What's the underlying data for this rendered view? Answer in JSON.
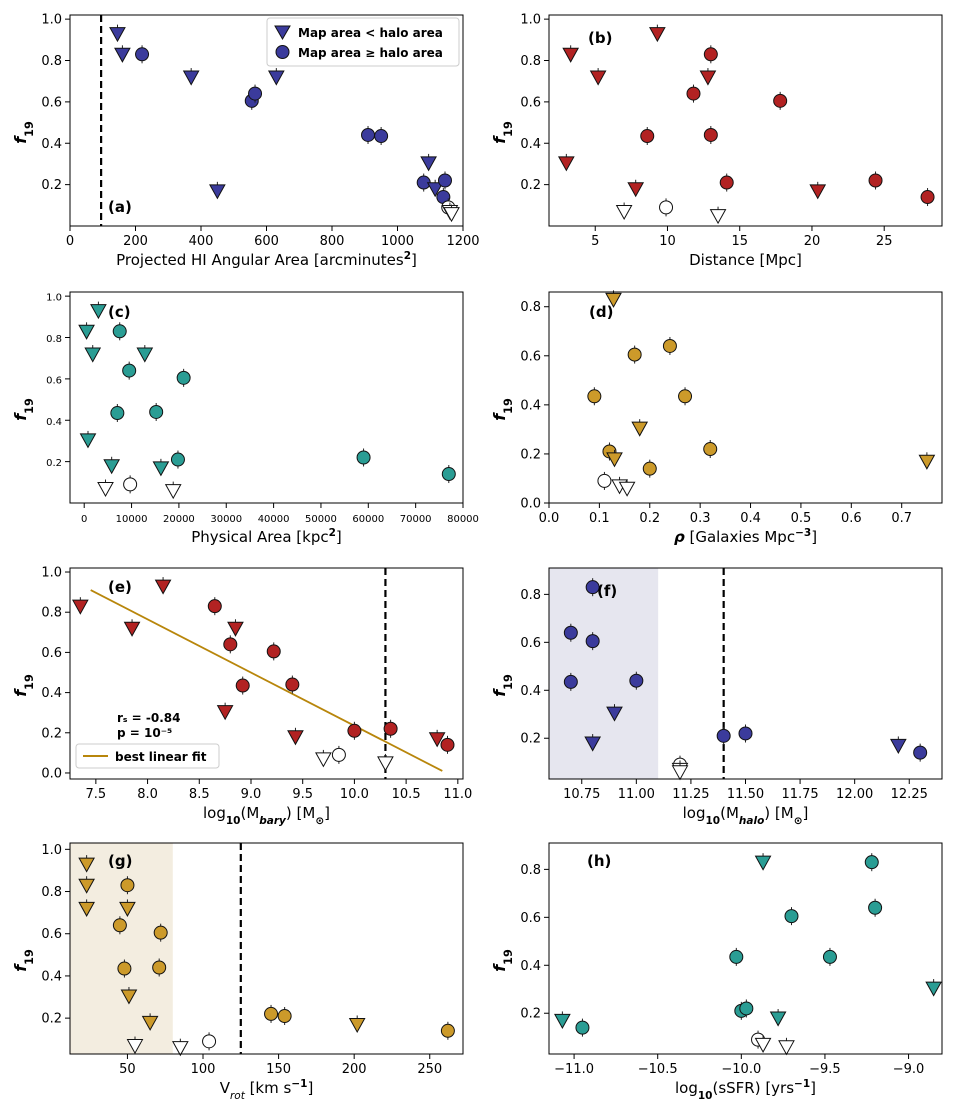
{
  "figure": {
    "y_label_base": "f",
    "y_label_sub": "19"
  },
  "chart_data": [
    {
      "panel": "a",
      "type": "scatter",
      "tag": "(a)",
      "xlabel_parts": [
        [
          "Projected HI Angular Area [arcminutes",
          ""
        ],
        [
          "2",
          "sup"
        ],
        [
          "]",
          ""
        ]
      ],
      "xlim": [
        0,
        1200
      ],
      "ylim": [
        0.0,
        1.02
      ],
      "xticks": [
        0,
        200,
        400,
        600,
        800,
        1000,
        1200
      ],
      "xtick_labels": [
        "0",
        "200",
        "400",
        "600",
        "800",
        "1000",
        "1200"
      ],
      "yticks": [
        0.2,
        0.4,
        0.6,
        0.8,
        1.0
      ],
      "ytick_labels": [
        "0.2",
        "0.4",
        "0.6",
        "0.8",
        "1.0"
      ],
      "color": "#3b3b9c",
      "vline": 95,
      "legend": {
        "placement": "top-right",
        "entries": [
          {
            "marker": "triangle",
            "label": "Map area < halo area"
          },
          {
            "marker": "circle",
            "label": "Map area ≥ halo area"
          }
        ]
      },
      "points": [
        {
          "x": 145,
          "y": 0.93,
          "m": "t"
        },
        {
          "x": 160,
          "y": 0.83,
          "m": "t"
        },
        {
          "x": 220,
          "y": 0.83,
          "m": "c"
        },
        {
          "x": 370,
          "y": 0.72,
          "m": "t"
        },
        {
          "x": 450,
          "y": 0.17,
          "m": "t"
        },
        {
          "x": 555,
          "y": 0.605,
          "m": "c"
        },
        {
          "x": 565,
          "y": 0.64,
          "m": "c"
        },
        {
          "x": 630,
          "y": 0.72,
          "m": "t"
        },
        {
          "x": 910,
          "y": 0.44,
          "m": "c"
        },
        {
          "x": 950,
          "y": 0.435,
          "m": "c"
        },
        {
          "x": 1080,
          "y": 0.21,
          "m": "c"
        },
        {
          "x": 1095,
          "y": 0.305,
          "m": "t"
        },
        {
          "x": 1115,
          "y": 0.18,
          "m": "t"
        },
        {
          "x": 1140,
          "y": 0.14,
          "m": "c"
        },
        {
          "x": 1145,
          "y": 0.22,
          "m": "c"
        },
        {
          "x": 1155,
          "y": 0.09,
          "m": "c",
          "open": true
        },
        {
          "x": 1160,
          "y": 0.07,
          "m": "t",
          "open": true
        },
        {
          "x": 1165,
          "y": 0.06,
          "m": "t",
          "open": true
        }
      ]
    },
    {
      "panel": "b",
      "type": "scatter",
      "tag": "(b)",
      "xlabel_parts": [
        [
          "Distance [Mpc]",
          ""
        ]
      ],
      "xlim": [
        1.8,
        29.0
      ],
      "ylim": [
        0.0,
        1.02
      ],
      "xticks": [
        5,
        10,
        15,
        20,
        25
      ],
      "xtick_labels": [
        "5",
        "10",
        "15",
        "20",
        "25"
      ],
      "yticks": [
        0.2,
        0.4,
        0.6,
        0.8,
        1.0
      ],
      "ytick_labels": [
        "0.2",
        "0.4",
        "0.6",
        "0.8",
        "1.0"
      ],
      "color": "#b22222",
      "points": [
        {
          "x": 3.0,
          "y": 0.305,
          "m": "t"
        },
        {
          "x": 3.3,
          "y": 0.83,
          "m": "t"
        },
        {
          "x": 5.2,
          "y": 0.72,
          "m": "t"
        },
        {
          "x": 7.0,
          "y": 0.07,
          "m": "t",
          "open": true
        },
        {
          "x": 7.8,
          "y": 0.18,
          "m": "t"
        },
        {
          "x": 8.6,
          "y": 0.435,
          "m": "c"
        },
        {
          "x": 9.3,
          "y": 0.93,
          "m": "t"
        },
        {
          "x": 9.9,
          "y": 0.09,
          "m": "c",
          "open": true
        },
        {
          "x": 11.8,
          "y": 0.64,
          "m": "c"
        },
        {
          "x": 12.8,
          "y": 0.72,
          "m": "t"
        },
        {
          "x": 13.0,
          "y": 0.83,
          "m": "c"
        },
        {
          "x": 13.0,
          "y": 0.44,
          "m": "c"
        },
        {
          "x": 13.5,
          "y": 0.05,
          "m": "t",
          "open": true
        },
        {
          "x": 14.1,
          "y": 0.21,
          "m": "c"
        },
        {
          "x": 17.8,
          "y": 0.605,
          "m": "c"
        },
        {
          "x": 20.4,
          "y": 0.17,
          "m": "t"
        },
        {
          "x": 24.4,
          "y": 0.22,
          "m": "c"
        },
        {
          "x": 28.0,
          "y": 0.14,
          "m": "c"
        }
      ]
    },
    {
      "panel": "c",
      "type": "scatter",
      "tag": "(c)",
      "xlabel_parts": [
        [
          "Physical Area [kpc",
          ""
        ],
        [
          "2",
          "sup"
        ],
        [
          "]",
          ""
        ]
      ],
      "xlim": [
        -3000,
        80000
      ],
      "ylim": [
        0.0,
        1.02
      ],
      "xticks": [
        0,
        10000,
        20000,
        30000,
        40000,
        50000,
        60000,
        70000,
        80000
      ],
      "xtick_labels": [
        "0",
        "10000",
        "20000",
        "30000",
        "40000",
        "50000",
        "60000",
        "70000",
        "80000"
      ],
      "yticks": [
        0.2,
        0.4,
        0.6,
        0.8,
        1.0
      ],
      "ytick_labels": [
        "0.2",
        "0.4",
        "0.6",
        "0.8",
        "1.0"
      ],
      "color": "#2a9d94",
      "points": [
        {
          "x": 500,
          "y": 0.83,
          "m": "t"
        },
        {
          "x": 800,
          "y": 0.305,
          "m": "t"
        },
        {
          "x": 1800,
          "y": 0.72,
          "m": "t"
        },
        {
          "x": 3000,
          "y": 0.93,
          "m": "t"
        },
        {
          "x": 4500,
          "y": 0.07,
          "m": "t",
          "open": true
        },
        {
          "x": 5800,
          "y": 0.18,
          "m": "t"
        },
        {
          "x": 7000,
          "y": 0.435,
          "m": "c"
        },
        {
          "x": 7500,
          "y": 0.83,
          "m": "c"
        },
        {
          "x": 9700,
          "y": 0.09,
          "m": "c",
          "open": true
        },
        {
          "x": 9500,
          "y": 0.64,
          "m": "c"
        },
        {
          "x": 12800,
          "y": 0.72,
          "m": "t"
        },
        {
          "x": 15200,
          "y": 0.44,
          "m": "c"
        },
        {
          "x": 16200,
          "y": 0.17,
          "m": "t"
        },
        {
          "x": 18800,
          "y": 0.06,
          "m": "t",
          "open": true
        },
        {
          "x": 19800,
          "y": 0.21,
          "m": "c"
        },
        {
          "x": 21000,
          "y": 0.605,
          "m": "c"
        },
        {
          "x": 59000,
          "y": 0.22,
          "m": "c"
        },
        {
          "x": 77000,
          "y": 0.14,
          "m": "c"
        }
      ]
    },
    {
      "panel": "d",
      "type": "scatter",
      "tag": "(d)",
      "xlabel_parts": [
        [
          "ρ",
          "bi"
        ],
        [
          " [Galaxies Mpc",
          ""
        ],
        [
          "−3",
          "sup"
        ],
        [
          "]",
          ""
        ]
      ],
      "xlim": [
        0.0,
        0.78
      ],
      "ylim": [
        0.0,
        0.86
      ],
      "xticks": [
        0.0,
        0.1,
        0.2,
        0.3,
        0.4,
        0.5,
        0.6,
        0.7
      ],
      "xtick_labels": [
        "0.0",
        "0.1",
        "0.2",
        "0.3",
        "0.4",
        "0.5",
        "0.6",
        "0.7"
      ],
      "yticks": [
        0.0,
        0.2,
        0.4,
        0.6,
        0.8
      ],
      "ytick_labels": [
        "0.0",
        "0.2",
        "0.4",
        "0.6",
        "0.8"
      ],
      "color": "#cc9a2a",
      "points": [
        {
          "x": 0.09,
          "y": 0.435,
          "m": "c"
        },
        {
          "x": 0.11,
          "y": 0.09,
          "m": "c",
          "open": true
        },
        {
          "x": 0.12,
          "y": 0.21,
          "m": "c"
        },
        {
          "x": 0.128,
          "y": 0.83,
          "m": "t"
        },
        {
          "x": 0.13,
          "y": 0.18,
          "m": "t"
        },
        {
          "x": 0.14,
          "y": 0.07,
          "m": "t",
          "open": true
        },
        {
          "x": 0.155,
          "y": 0.06,
          "m": "t",
          "open": true
        },
        {
          "x": 0.17,
          "y": 0.605,
          "m": "c"
        },
        {
          "x": 0.18,
          "y": 0.305,
          "m": "t"
        },
        {
          "x": 0.2,
          "y": 0.14,
          "m": "c"
        },
        {
          "x": 0.24,
          "y": 0.64,
          "m": "c"
        },
        {
          "x": 0.27,
          "y": 0.435,
          "m": "c"
        },
        {
          "x": 0.32,
          "y": 0.22,
          "m": "c"
        },
        {
          "x": 0.75,
          "y": 0.17,
          "m": "t"
        }
      ]
    },
    {
      "panel": "e",
      "type": "scatter",
      "tag": "(e)",
      "xlabel_parts": [
        [
          "log",
          ""
        ],
        [
          "10",
          "sub"
        ],
        [
          "(M",
          ""
        ],
        [
          "bary",
          "sub-bi"
        ],
        [
          ") [M",
          ""
        ],
        [
          "⊙",
          "sub"
        ],
        [
          "]",
          ""
        ]
      ],
      "xlim": [
        7.25,
        11.05
      ],
      "ylim": [
        -0.03,
        1.02
      ],
      "xticks": [
        7.5,
        8.0,
        8.5,
        9.0,
        9.5,
        10.0,
        10.5,
        11.0
      ],
      "xtick_labels": [
        "7.5",
        "8.0",
        "8.5",
        "9.0",
        "9.5",
        "10.0",
        "10.5",
        "11.0"
      ],
      "yticks": [
        0.0,
        0.2,
        0.4,
        0.6,
        0.8,
        1.0
      ],
      "ytick_labels": [
        "0.0",
        "0.2",
        "0.4",
        "0.6",
        "0.8",
        "1.0"
      ],
      "color": "#b22222",
      "vline": 10.3,
      "fit": {
        "x": [
          7.45,
          10.85
        ],
        "y": [
          0.91,
          0.01
        ],
        "color": "#b8860b",
        "label": "best linear fit"
      },
      "stats": [
        "rₛ = -0.84",
        "p = 10⁻⁵"
      ],
      "points": [
        {
          "x": 7.35,
          "y": 0.83,
          "m": "t"
        },
        {
          "x": 7.85,
          "y": 0.72,
          "m": "t"
        },
        {
          "x": 8.15,
          "y": 0.93,
          "m": "t"
        },
        {
          "x": 8.65,
          "y": 0.83,
          "m": "c"
        },
        {
          "x": 8.75,
          "y": 0.305,
          "m": "t"
        },
        {
          "x": 8.8,
          "y": 0.64,
          "m": "c"
        },
        {
          "x": 8.85,
          "y": 0.72,
          "m": "t"
        },
        {
          "x": 8.92,
          "y": 0.435,
          "m": "c"
        },
        {
          "x": 9.22,
          "y": 0.605,
          "m": "c"
        },
        {
          "x": 9.4,
          "y": 0.44,
          "m": "c"
        },
        {
          "x": 9.43,
          "y": 0.18,
          "m": "t"
        },
        {
          "x": 9.7,
          "y": 0.07,
          "m": "t",
          "open": true
        },
        {
          "x": 9.85,
          "y": 0.09,
          "m": "c",
          "open": true
        },
        {
          "x": 10.0,
          "y": 0.21,
          "m": "c"
        },
        {
          "x": 10.3,
          "y": 0.05,
          "m": "t",
          "open": true
        },
        {
          "x": 10.35,
          "y": 0.22,
          "m": "c"
        },
        {
          "x": 10.8,
          "y": 0.17,
          "m": "t"
        },
        {
          "x": 10.9,
          "y": 0.14,
          "m": "c"
        }
      ]
    },
    {
      "panel": "f",
      "type": "scatter",
      "tag": "(f)",
      "xlabel_parts": [
        [
          "log",
          ""
        ],
        [
          "10",
          "sub"
        ],
        [
          "(M",
          ""
        ],
        [
          "halo",
          "sub-bi"
        ],
        [
          ") [M",
          ""
        ],
        [
          "⊙",
          "sub"
        ],
        [
          "]",
          ""
        ]
      ],
      "xlim": [
        10.6,
        12.4
      ],
      "ylim": [
        0.03,
        0.91
      ],
      "xticks": [
        10.75,
        11.0,
        11.25,
        11.5,
        11.75,
        12.0,
        12.25
      ],
      "xtick_labels": [
        "10.75",
        "11.00",
        "11.25",
        "11.50",
        "11.75",
        "12.00",
        "12.25"
      ],
      "yticks": [
        0.2,
        0.4,
        0.6,
        0.8
      ],
      "ytick_labels": [
        "0.2",
        "0.4",
        "0.6",
        "0.8"
      ],
      "color": "#3b3b9c",
      "vline": 11.4,
      "shade": {
        "x0": 10.6,
        "x1": 11.1,
        "color": "#e6e6ef"
      },
      "points": [
        {
          "x": 10.7,
          "y": 0.64,
          "m": "c"
        },
        {
          "x": 10.7,
          "y": 0.435,
          "m": "c"
        },
        {
          "x": 10.8,
          "y": 0.83,
          "m": "c"
        },
        {
          "x": 10.8,
          "y": 0.605,
          "m": "c"
        },
        {
          "x": 10.8,
          "y": 0.18,
          "m": "t"
        },
        {
          "x": 10.9,
          "y": 0.305,
          "m": "t"
        },
        {
          "x": 11.0,
          "y": 0.44,
          "m": "c"
        },
        {
          "x": 11.2,
          "y": 0.09,
          "m": "c",
          "open": true
        },
        {
          "x": 11.2,
          "y": 0.07,
          "m": "t",
          "open": true
        },
        {
          "x": 11.2,
          "y": 0.06,
          "m": "t",
          "open": true
        },
        {
          "x": 11.4,
          "y": 0.21,
          "m": "c"
        },
        {
          "x": 11.5,
          "y": 0.22,
          "m": "c"
        },
        {
          "x": 12.2,
          "y": 0.17,
          "m": "t"
        },
        {
          "x": 12.3,
          "y": 0.14,
          "m": "c"
        }
      ]
    },
    {
      "panel": "g",
      "type": "scatter",
      "tag": "(g)",
      "xlabel_parts": [
        [
          "V",
          ""
        ],
        [
          "rot",
          "sub-i"
        ],
        [
          " [km s",
          ""
        ],
        [
          "−1",
          "sup"
        ],
        [
          "]",
          ""
        ]
      ],
      "xlim": [
        12,
        272
      ],
      "ylim": [
        0.03,
        1.03
      ],
      "xticks": [
        50,
        100,
        150,
        200,
        250
      ],
      "xtick_labels": [
        "50",
        "100",
        "150",
        "200",
        "250"
      ],
      "yticks": [
        0.2,
        0.4,
        0.6,
        0.8,
        1.0
      ],
      "ytick_labels": [
        "0.2",
        "0.4",
        "0.6",
        "0.8",
        "1.0"
      ],
      "color": "#cc9a2a",
      "vline": 125,
      "shade": {
        "x0": 12,
        "x1": 80,
        "color": "#f3ede0"
      },
      "points": [
        {
          "x": 23,
          "y": 0.93,
          "m": "t"
        },
        {
          "x": 23,
          "y": 0.83,
          "m": "t"
        },
        {
          "x": 23,
          "y": 0.72,
          "m": "t"
        },
        {
          "x": 45,
          "y": 0.64,
          "m": "c"
        },
        {
          "x": 48,
          "y": 0.435,
          "m": "c"
        },
        {
          "x": 50,
          "y": 0.83,
          "m": "c"
        },
        {
          "x": 50,
          "y": 0.72,
          "m": "t"
        },
        {
          "x": 51,
          "y": 0.305,
          "m": "t"
        },
        {
          "x": 55,
          "y": 0.07,
          "m": "t",
          "open": true
        },
        {
          "x": 65,
          "y": 0.18,
          "m": "t"
        },
        {
          "x": 72,
          "y": 0.605,
          "m": "c"
        },
        {
          "x": 71,
          "y": 0.44,
          "m": "c"
        },
        {
          "x": 85,
          "y": 0.06,
          "m": "t",
          "open": true
        },
        {
          "x": 104,
          "y": 0.09,
          "m": "c",
          "open": true
        },
        {
          "x": 145,
          "y": 0.22,
          "m": "c"
        },
        {
          "x": 154,
          "y": 0.21,
          "m": "c"
        },
        {
          "x": 202,
          "y": 0.17,
          "m": "t"
        },
        {
          "x": 262,
          "y": 0.14,
          "m": "c"
        }
      ]
    },
    {
      "panel": "h",
      "type": "scatter",
      "tag": "(h)",
      "xlabel_parts": [
        [
          "log",
          ""
        ],
        [
          "10",
          "sub"
        ],
        [
          "(sSFR) [yrs",
          ""
        ],
        [
          "−1",
          "sup"
        ],
        [
          "]",
          ""
        ]
      ],
      "xlim": [
        -11.15,
        -8.8
      ],
      "ylim": [
        0.03,
        0.91
      ],
      "xticks": [
        -11.0,
        -10.5,
        -10.0,
        -9.5,
        -9.0
      ],
      "xtick_labels": [
        "−11.0",
        "−10.5",
        "−10.0",
        "−9.5",
        "−9.0"
      ],
      "yticks": [
        0.2,
        0.4,
        0.6,
        0.8
      ],
      "ytick_labels": [
        "0.2",
        "0.4",
        "0.6",
        "0.8"
      ],
      "color": "#2a9d94",
      "points": [
        {
          "x": -11.07,
          "y": 0.17,
          "m": "t"
        },
        {
          "x": -10.95,
          "y": 0.14,
          "m": "c"
        },
        {
          "x": -10.03,
          "y": 0.435,
          "m": "c"
        },
        {
          "x": -10.0,
          "y": 0.21,
          "m": "c"
        },
        {
          "x": -9.97,
          "y": 0.22,
          "m": "c"
        },
        {
          "x": -9.9,
          "y": 0.09,
          "m": "c",
          "open": true
        },
        {
          "x": -9.87,
          "y": 0.83,
          "m": "t"
        },
        {
          "x": -9.87,
          "y": 0.07,
          "m": "t",
          "open": true
        },
        {
          "x": -9.78,
          "y": 0.18,
          "m": "t"
        },
        {
          "x": -9.73,
          "y": 0.06,
          "m": "t",
          "open": true
        },
        {
          "x": -9.7,
          "y": 0.605,
          "m": "c"
        },
        {
          "x": -9.47,
          "y": 0.435,
          "m": "c"
        },
        {
          "x": -9.22,
          "y": 0.83,
          "m": "c"
        },
        {
          "x": -9.2,
          "y": 0.64,
          "m": "c"
        },
        {
          "x": -8.85,
          "y": 0.305,
          "m": "t"
        }
      ]
    }
  ]
}
